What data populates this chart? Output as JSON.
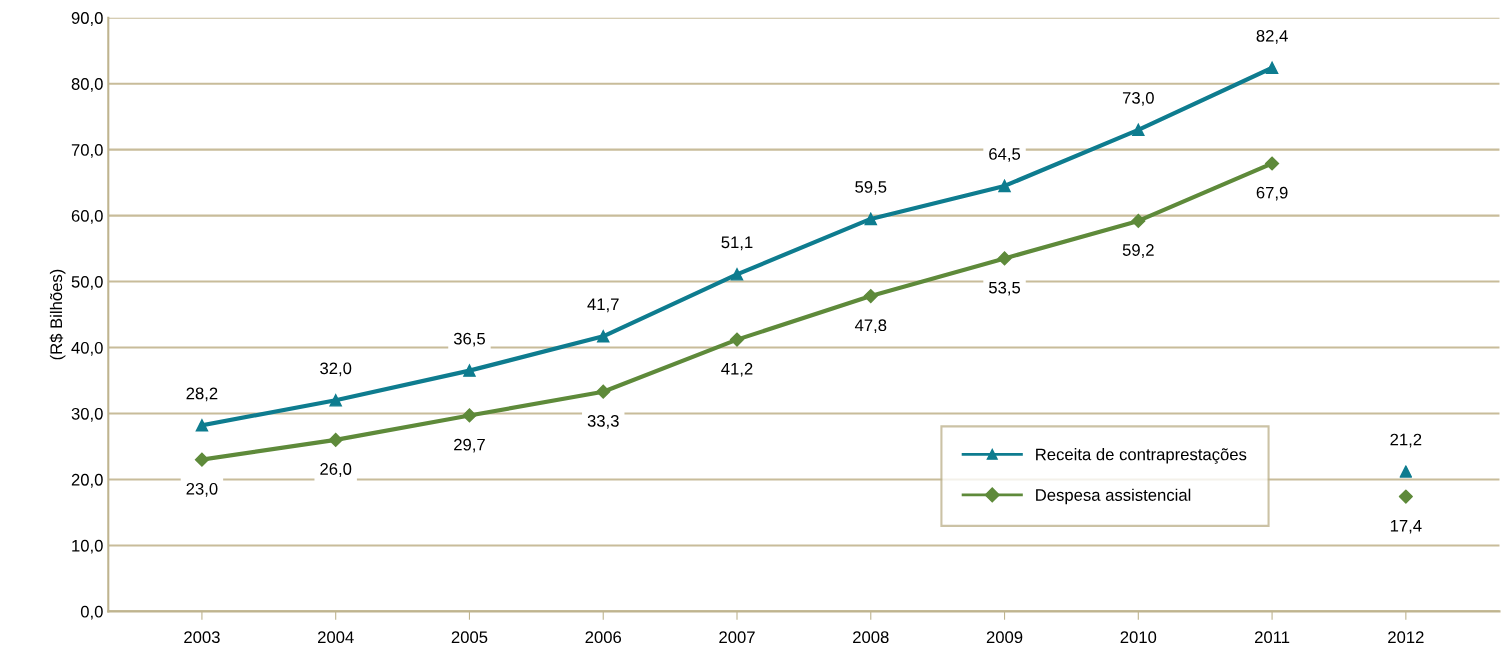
{
  "chart_data": {
    "type": "line",
    "ylabel": "(R$ Bilhões)",
    "categories": [
      "2003",
      "2004",
      "2005",
      "2006",
      "2007",
      "2008",
      "2009",
      "2010",
      "2011",
      "2012"
    ],
    "series": [
      {
        "name": "Receita de contraprestações",
        "color": "#0e7c8f",
        "marker": "triangle",
        "values": [
          28.2,
          32.0,
          36.5,
          41.7,
          51.1,
          59.5,
          64.5,
          73.0,
          82.4,
          null
        ],
        "value_labels": [
          "28,2",
          "32,0",
          "36,5",
          "41,7",
          "51,1",
          "59,5",
          "64,5",
          "73,0",
          "82,4",
          null
        ]
      },
      {
        "name": "Despesa assistencial",
        "color": "#5e8a3a",
        "marker": "diamond",
        "values": [
          23.0,
          26.0,
          29.7,
          33.3,
          41.2,
          47.8,
          53.5,
          59.2,
          67.9,
          null
        ],
        "value_labels": [
          "23,0",
          "26,0",
          "29,7",
          "33,3",
          "41,2",
          "47,8",
          "53,5",
          "59,2",
          "67,9",
          null
        ]
      },
      {
        "type": "scatter",
        "color": "#0e7c8f",
        "marker": "triangle",
        "values": [
          null,
          null,
          null,
          null,
          null,
          null,
          null,
          null,
          null,
          21.2
        ],
        "value_labels": [
          null,
          null,
          null,
          null,
          null,
          null,
          null,
          null,
          null,
          "21,2"
        ]
      },
      {
        "type": "scatter",
        "color": "#5e8a3a",
        "marker": "diamond",
        "values": [
          null,
          null,
          null,
          null,
          null,
          null,
          null,
          null,
          null,
          17.4
        ],
        "value_labels": [
          null,
          null,
          null,
          null,
          null,
          null,
          null,
          null,
          null,
          "17,4"
        ]
      }
    ],
    "ylim": [
      0,
      90
    ],
    "yticks": [
      {
        "value": 0,
        "label": "0,0"
      },
      {
        "value": 10,
        "label": "10,0"
      },
      {
        "value": 20,
        "label": "20,0"
      },
      {
        "value": 30,
        "label": "30,0"
      },
      {
        "value": 40,
        "label": "40,0"
      },
      {
        "value": 50,
        "label": "50,0"
      },
      {
        "value": 60,
        "label": "60,0"
      },
      {
        "value": 70,
        "label": "70,0"
      },
      {
        "value": 80,
        "label": "80,0"
      },
      {
        "value": 90,
        "label": "90,0"
      }
    ],
    "grid": "y",
    "legend": "bottom right",
    "line_style": "solid"
  }
}
